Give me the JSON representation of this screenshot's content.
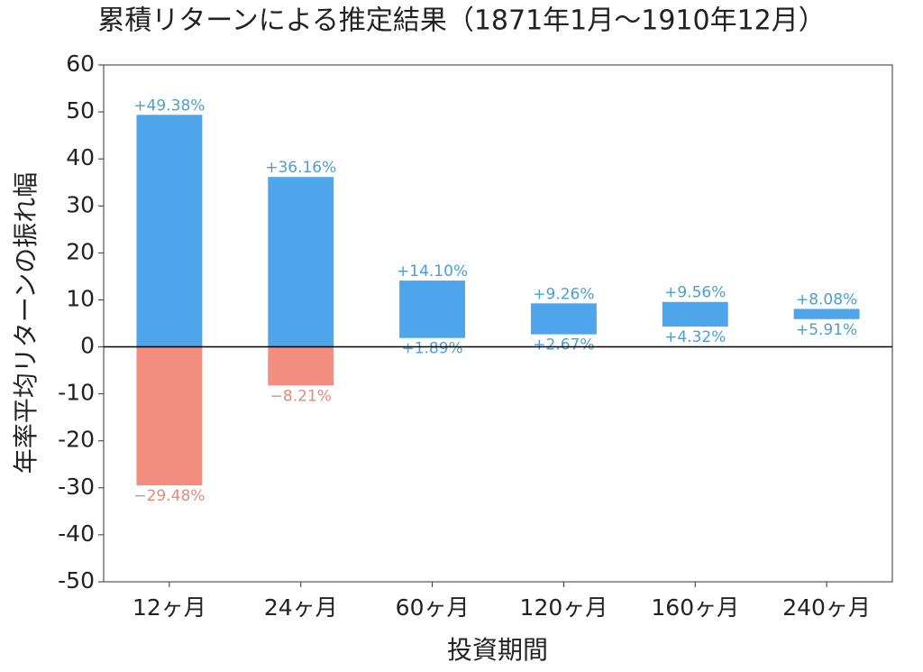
{
  "chart_data": {
    "type": "floating_bar",
    "title": "累積リターンによる推定結果（1871年1月～1910年12月）",
    "xlabel": "投資期間",
    "ylabel": "年率平均リターンの振れ幅",
    "categories": [
      "12ヶ月",
      "24ヶ月",
      "60ヶ月",
      "120ヶ月",
      "160ヶ月",
      "240ヶ月"
    ],
    "series": [
      {
        "values": [
          49.38,
          36.16,
          14.1,
          9.26,
          9.56,
          8.08
        ],
        "value_labels": [
          "+49.38%",
          "+36.16%",
          "+14.10%",
          "+9.26%",
          "+9.56%",
          "+8.08%"
        ]
      },
      {
        "values": [
          -29.48,
          -8.21,
          1.89,
          2.67,
          4.32,
          5.91
        ],
        "value_labels": [
          "−29.48%",
          "−8.21%",
          "+1.89%",
          "+2.67%",
          "+4.32%",
          "+5.91%"
        ]
      }
    ],
    "positive_color": "#4ea5e9",
    "negative_color": "#f28e7f",
    "positive_label_color": "#4a9fd2",
    "negative_label_color": "#e8897a",
    "ylim": [
      -50,
      60
    ],
    "yticks": [
      -50,
      -40,
      -30,
      -20,
      -10,
      0,
      10,
      20,
      30,
      40,
      50,
      60
    ],
    "zero_line": true,
    "grid": false
  }
}
